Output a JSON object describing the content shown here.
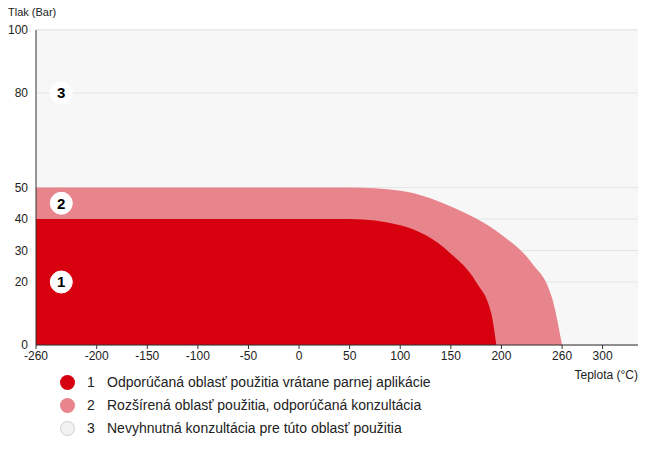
{
  "chart_data": {
    "type": "area",
    "y_label": "Tlak (Bar)",
    "x_label": "Teplota (°C)",
    "xlim": [
      -260,
      335
    ],
    "xticks": [
      -260,
      -200,
      -150,
      -100,
      -50,
      0,
      50,
      100,
      150,
      200,
      260,
      300
    ],
    "ylim": [
      0,
      100
    ],
    "yticks": [
      0,
      20,
      30,
      40,
      50,
      80,
      100
    ],
    "grid": true,
    "legend": "bottom",
    "series": [
      {
        "label": "1",
        "name": "Odporúčaná oblasť použitia vrátane parnej aplikácie",
        "color": "#d7000f",
        "x": [
          -260,
          50,
          100,
          150,
          175,
          190,
          195
        ],
        "values": [
          40,
          40,
          38,
          29,
          20,
          10,
          0
        ]
      },
      {
        "label": "2",
        "name": "Rozšírená oblasť použitia, odporúčaná konzultácia",
        "color": "#e8848b",
        "x": [
          -260,
          50,
          100,
          150,
          200,
          230,
          250,
          260
        ],
        "values": [
          50,
          50,
          49,
          44,
          35,
          26,
          15,
          0
        ]
      },
      {
        "label": "3",
        "name": "Nevyhnutná konzultácia pre túto oblasť použitia",
        "color": "#f2f2f2",
        "x": [
          -260,
          335
        ],
        "values": [
          100,
          100
        ]
      }
    ],
    "annotations": [
      {
        "text": "3",
        "x": -235,
        "y": 80
      },
      {
        "text": "2",
        "x": -235,
        "y": 45
      },
      {
        "text": "1",
        "x": -235,
        "y": 20
      }
    ]
  }
}
